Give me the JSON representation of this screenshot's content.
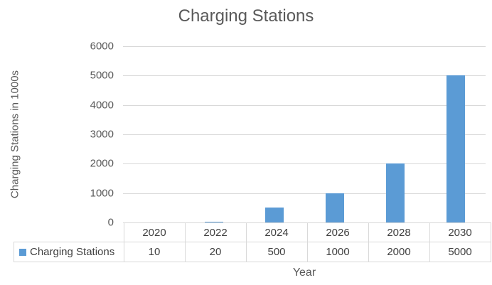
{
  "chart_data": {
    "type": "bar",
    "title": "Charging Stations",
    "series_name": "Charging Stations",
    "categories": [
      "2020",
      "2022",
      "2024",
      "2026",
      "2028",
      "2030"
    ],
    "values": [
      10,
      20,
      500,
      1000,
      2000,
      5000
    ],
    "value_labels": [
      "10",
      "20",
      "500",
      "1000",
      "2000",
      "5000"
    ],
    "xlabel": "Year",
    "ylabel": "Charging Stations in 1000s",
    "ylim": [
      0,
      6000
    ],
    "ytick_values": [
      0,
      1000,
      2000,
      3000,
      4000,
      5000,
      6000
    ],
    "grid": true,
    "legend_position": "bottom-table-left",
    "colors": {
      "bar": "#5b9bd5",
      "gridline": "#d9d9d9",
      "table_border": "#d9d9d9",
      "title_text": "#595959",
      "axis_text": "#595959",
      "table_text": "#404040"
    }
  }
}
